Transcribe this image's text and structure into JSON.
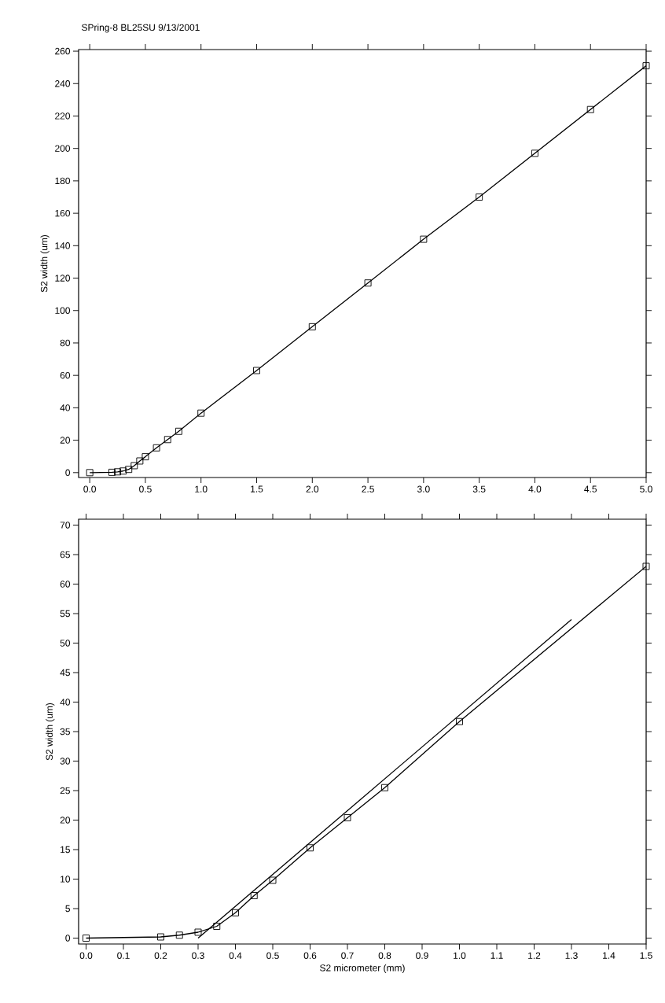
{
  "chart_data": [
    {
      "type": "line",
      "title": "SPring-8 BL25SU 9/13/2001",
      "ylabel": "S2 width (um)",
      "marker": "square",
      "line_style": "solid",
      "grid": false,
      "x": [
        0,
        0.2,
        0.25,
        0.3,
        0.35,
        0.4,
        0.45,
        0.5,
        0.6,
        0.7,
        0.8,
        1.0,
        1.5,
        2.0,
        2.5,
        3.0,
        3.5,
        4.0,
        4.5,
        5.0
      ],
      "series": [
        {
          "color": "#000000",
          "values": [
            0,
            0.2,
            0.5,
            1.0,
            2.0,
            4.3,
            7.2,
            9.8,
            15.3,
            20.4,
            25.5,
            36.7,
            63,
            90,
            117,
            144,
            170,
            197,
            224,
            251
          ]
        }
      ],
      "xlim": [
        -0.1,
        5.0
      ],
      "ylim": [
        -3,
        261
      ],
      "xticks": [
        {
          "value": 0,
          "label": "0.0"
        },
        {
          "value": 0.5,
          "label": "0.5"
        },
        {
          "value": 1,
          "label": "1.0"
        },
        {
          "value": 1.5,
          "label": "1.5"
        },
        {
          "value": 2,
          "label": "2.0"
        },
        {
          "value": 2.5,
          "label": "2.5"
        },
        {
          "value": 3,
          "label": "3.0"
        },
        {
          "value": 3.5,
          "label": "3.5"
        },
        {
          "value": 4,
          "label": "4.0"
        },
        {
          "value": 4.5,
          "label": "4.5"
        },
        {
          "value": 5,
          "label": "5.0"
        }
      ],
      "yticks": [
        0,
        20,
        40,
        60,
        80,
        100,
        120,
        140,
        160,
        180,
        200,
        220,
        240,
        260
      ]
    },
    {
      "type": "line",
      "xlabel": "S2 micrometer (mm)",
      "ylabel": "S2 width (um)",
      "marker": "square",
      "line_style": "solid",
      "grid": false,
      "x": [
        0,
        0.2,
        0.25,
        0.3,
        0.35,
        0.4,
        0.45,
        0.5,
        0.6,
        0.7,
        0.8,
        1.0,
        1.5
      ],
      "series": [
        {
          "color": "#000000",
          "values": [
            0,
            0.2,
            0.5,
            1.0,
            2.0,
            4.3,
            7.2,
            9.8,
            15.3,
            20.4,
            25.5,
            36.7,
            63
          ]
        },
        {
          "color": "#000000",
          "marker": "none",
          "x": [
            0.3,
            1.3
          ],
          "values": [
            0,
            54
          ]
        }
      ],
      "xlim": [
        -0.02,
        1.5
      ],
      "ylim": [
        -1,
        71
      ],
      "xticks": [
        {
          "value": 0,
          "label": "0.0"
        },
        {
          "value": 0.1,
          "label": "0.1"
        },
        {
          "value": 0.2,
          "label": "0.2"
        },
        {
          "value": 0.3,
          "label": "0.3"
        },
        {
          "value": 0.4,
          "label": "0.4"
        },
        {
          "value": 0.5,
          "label": "0.5"
        },
        {
          "value": 0.6,
          "label": "0.6"
        },
        {
          "value": 0.7,
          "label": "0.7"
        },
        {
          "value": 0.8,
          "label": "0.8"
        },
        {
          "value": 0.9,
          "label": "0.9"
        },
        {
          "value": 1.0,
          "label": "1.0"
        },
        {
          "value": 1.1,
          "label": "1.1"
        },
        {
          "value": 1.2,
          "label": "1.2"
        },
        {
          "value": 1.3,
          "label": "1.3"
        },
        {
          "value": 1.4,
          "label": "1.4"
        },
        {
          "value": 1.5,
          "label": "1.5"
        }
      ],
      "yticks": [
        0,
        5,
        10,
        15,
        20,
        25,
        30,
        35,
        40,
        45,
        50,
        55,
        60,
        65,
        70
      ]
    }
  ]
}
